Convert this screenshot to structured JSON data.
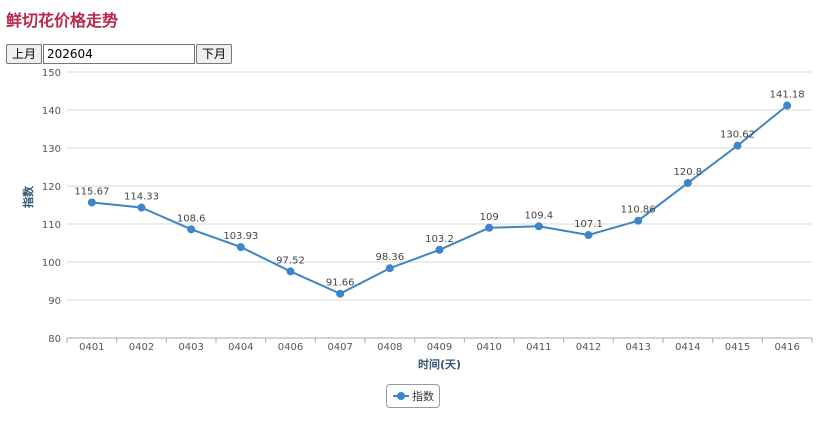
{
  "page": {
    "title": "鲜切花价格走势"
  },
  "month_nav": {
    "prev_label": "上月",
    "current_value": "202604",
    "next_label": "下月"
  },
  "colors": {
    "title": "#b9284a",
    "series": "#3d85c6",
    "grid": "#d8d8d8",
    "axis_text": "#555555",
    "axis_title": "#335577"
  },
  "chart_data": {
    "type": "line",
    "title": "",
    "xlabel": "时间(天)",
    "ylabel": "指数",
    "ylim": [
      80,
      150
    ],
    "yticks": [
      80,
      90,
      100,
      110,
      120,
      130,
      140,
      150
    ],
    "grid": true,
    "legend_position": "bottom-center",
    "categories": [
      "0401",
      "0402",
      "0403",
      "0404",
      "0406",
      "0407",
      "0408",
      "0409",
      "0410",
      "0411",
      "0412",
      "0413",
      "0414",
      "0415",
      "0416"
    ],
    "series": [
      {
        "name": "指数",
        "values": [
          115.67,
          114.33,
          108.6,
          103.93,
          97.52,
          91.66,
          98.36,
          103.2,
          109,
          109.4,
          107.1,
          110.86,
          120.8,
          130.62,
          141.18
        ],
        "labels": [
          "115.67",
          "114.33",
          "108.6",
          "103.93",
          "97.52",
          "91.66",
          "98.36",
          "103.2",
          "109",
          "109.4",
          "107.1",
          "110.86",
          "120.8",
          "130.62",
          "141.18"
        ]
      }
    ]
  }
}
